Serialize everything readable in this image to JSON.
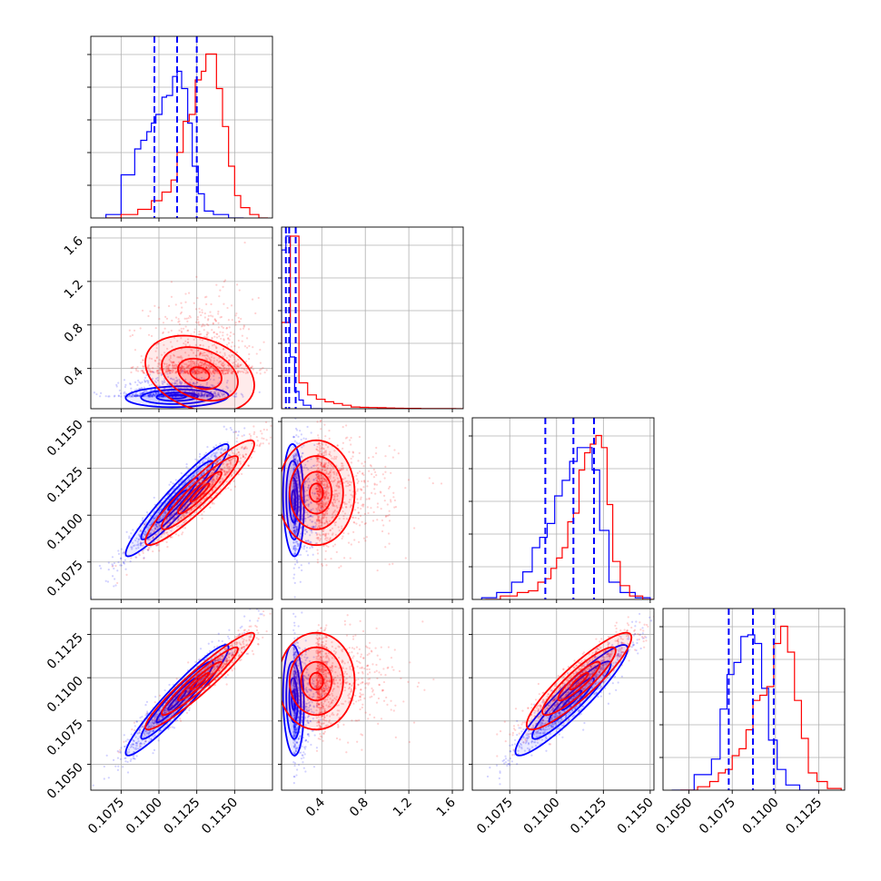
{
  "colors": {
    "sample_a": "#0000ff",
    "sample_b": "#ff0000",
    "quantile": "#0000ff",
    "grid": "#b0b0b0"
  },
  "chart_data": {
    "type": "corner",
    "title": "",
    "n_params": 4,
    "parameters": [
      {
        "label": "",
        "range": [
          0.1055,
          0.1175
        ],
        "ticks": [
          0.1075,
          0.11,
          0.1125,
          0.115
        ],
        "tick_labels": [
          "0.1075",
          "0.1100",
          "0.1125",
          "0.1150"
        ]
      },
      {
        "label": "",
        "range": [
          0.03,
          1.7
        ],
        "ticks": [
          0.4,
          0.8,
          1.2,
          1.6
        ],
        "tick_labels": [
          "0.4",
          "0.8",
          "1.2",
          "1.6"
        ]
      },
      {
        "label": "",
        "range": [
          0.1055,
          0.1152
        ],
        "ticks": [
          0.1075,
          0.11,
          0.1125,
          0.115
        ],
        "tick_labels": [
          "0.1075",
          "0.1100",
          "0.1125",
          "0.1150"
        ]
      },
      {
        "label": "",
        "range": [
          0.1035,
          0.114
        ],
        "ticks": [
          0.105,
          0.1075,
          0.11,
          0.1125
        ],
        "tick_labels": [
          "0.1050",
          "0.1075",
          "0.1100",
          "0.1125"
        ]
      }
    ],
    "series": [
      {
        "color": "#0000ff",
        "mean": [
          0.1112,
          0.14,
          0.1108,
          0.1087
        ],
        "std": [
          0.0017,
          0.06,
          0.0015,
          0.0016
        ],
        "correlations": [
          [
            0,
            2,
            0.95
          ],
          [
            0,
            3,
            0.95
          ],
          [
            2,
            3,
            0.93
          ],
          [
            0,
            1,
            0.1
          ],
          [
            1,
            2,
            -0.1
          ],
          [
            1,
            3,
            -0.1
          ]
        ],
        "quantiles": [
          [
            0.1097,
            0.1112,
            0.1125
          ],
          [
            0.07,
            0.1,
            0.16
          ],
          [
            0.1094,
            0.1109,
            0.112
          ],
          [
            0.1073,
            0.1087,
            0.1099
          ]
        ],
        "histograms": [
          {
            "edges": [
              0.1065,
              0.1075,
              0.1084,
              0.1088,
              0.1092,
              0.1095,
              0.1098,
              0.1102,
              0.1105,
              0.1109,
              0.1112,
              0.1115,
              0.1119,
              0.1122,
              0.1126,
              0.113,
              0.1136,
              0.1146,
              0.1156
            ],
            "counts": [
              0.02,
              0.25,
              0.4,
              0.45,
              0.5,
              0.55,
              0.6,
              0.7,
              0.71,
              0.82,
              0.85,
              0.75,
              0.55,
              0.3,
              0.14,
              0.04,
              0.02,
              0.0
            ]
          },
          {
            "edges": [
              0.03,
              0.07,
              0.11,
              0.15,
              0.19,
              0.23,
              0.3,
              0.4
            ],
            "counts": [
              0.92,
              1.0,
              0.3,
              0.1,
              0.05,
              0.02,
              0.0
            ]
          },
          {
            "edges": [
              0.106,
              0.1068,
              0.1076,
              0.1082,
              0.1087,
              0.1091,
              0.1095,
              0.1099,
              0.1103,
              0.1107,
              0.1111,
              0.1115,
              0.1119,
              0.1123,
              0.1128,
              0.1134,
              0.1142,
              0.115
            ],
            "counts": [
              0.01,
              0.04,
              0.1,
              0.16,
              0.3,
              0.36,
              0.44,
              0.6,
              0.69,
              0.8,
              0.88,
              0.88,
              0.75,
              0.4,
              0.1,
              0.04,
              0.01
            ]
          },
          {
            "edges": [
              0.104,
              0.1053,
              0.1063,
              0.1068,
              0.1072,
              0.1076,
              0.108,
              0.1084,
              0.1088,
              0.1092,
              0.1096,
              0.1101,
              0.1106,
              0.1114,
              0.1125
            ],
            "counts": [
              0.0,
              0.09,
              0.18,
              0.47,
              0.67,
              0.74,
              0.89,
              0.9,
              0.85,
              0.59,
              0.29,
              0.12,
              0.03,
              0.0
            ]
          }
        ]
      },
      {
        "color": "#ff0000",
        "mean": [
          0.1127,
          0.35,
          0.1112,
          0.1098
        ],
        "std": [
          0.0018,
          0.22,
          0.0014,
          0.0014
        ],
        "correlations": [
          [
            0,
            2,
            0.93
          ],
          [
            0,
            3,
            0.95
          ],
          [
            2,
            3,
            0.9
          ],
          [
            0,
            1,
            -0.3
          ],
          [
            1,
            2,
            0.0
          ],
          [
            1,
            3,
            0.0
          ]
        ],
        "histograms": [
          {
            "edges": [
              0.1065,
              0.1075,
              0.1086,
              0.1095,
              0.1102,
              0.1108,
              0.1112,
              0.1116,
              0.112,
              0.1124,
              0.1128,
              0.1131,
              0.1134,
              0.1138,
              0.1142,
              0.1146,
              0.115,
              0.1154,
              0.116,
              0.1166,
              0.1172
            ],
            "counts": [
              0.0,
              0.02,
              0.05,
              0.1,
              0.15,
              0.22,
              0.38,
              0.56,
              0.6,
              0.8,
              0.85,
              0.95,
              0.95,
              0.75,
              0.53,
              0.3,
              0.13,
              0.06,
              0.02,
              0.0
            ]
          },
          {
            "edges": [
              0.03,
              0.11,
              0.19,
              0.27,
              0.35,
              0.43,
              0.51,
              0.59,
              0.67,
              0.75,
              0.83,
              0.91,
              0.99,
              1.07,
              1.15,
              1.23,
              1.31,
              1.39,
              1.47,
              1.55,
              1.63,
              1.7
            ],
            "counts": [
              0.5,
              1.0,
              0.15,
              0.08,
              0.055,
              0.04,
              0.03,
              0.02,
              0.01,
              0.008,
              0.007,
              0.006,
              0.004,
              0.003,
              0.002,
              0.002,
              0.001,
              0.001,
              0.001,
              0.001,
              0.0
            ]
          },
          {
            "edges": [
              0.1062,
              0.107,
              0.1079,
              0.1085,
              0.109,
              0.1094,
              0.1097,
              0.11,
              0.1103,
              0.1106,
              0.1109,
              0.1112,
              0.1115,
              0.1118,
              0.1121,
              0.1124,
              0.1127,
              0.113,
              0.1134,
              0.1139,
              0.1146,
              0.1152
            ],
            "counts": [
              0.0,
              0.02,
              0.04,
              0.05,
              0.1,
              0.12,
              0.18,
              0.24,
              0.3,
              0.45,
              0.5,
              0.75,
              0.85,
              0.9,
              0.95,
              0.88,
              0.55,
              0.22,
              0.08,
              0.02,
              0.0
            ]
          },
          {
            "edges": [
              0.1045,
              0.1055,
              0.1062,
              0.1067,
              0.1071,
              0.1075,
              0.1079,
              0.1083,
              0.1087,
              0.1091,
              0.1095,
              0.1099,
              0.1103,
              0.1107,
              0.1111,
              0.1115,
              0.1119,
              0.1124,
              0.113,
              0.1138
            ],
            "counts": [
              0.0,
              0.02,
              0.05,
              0.1,
              0.12,
              0.2,
              0.24,
              0.35,
              0.52,
              0.55,
              0.6,
              0.85,
              0.95,
              0.8,
              0.52,
              0.3,
              0.1,
              0.05,
              0.01
            ]
          }
        ]
      }
    ],
    "grid": true,
    "scatter_points": true,
    "contours": true,
    "quantile_lines": "dashed"
  }
}
